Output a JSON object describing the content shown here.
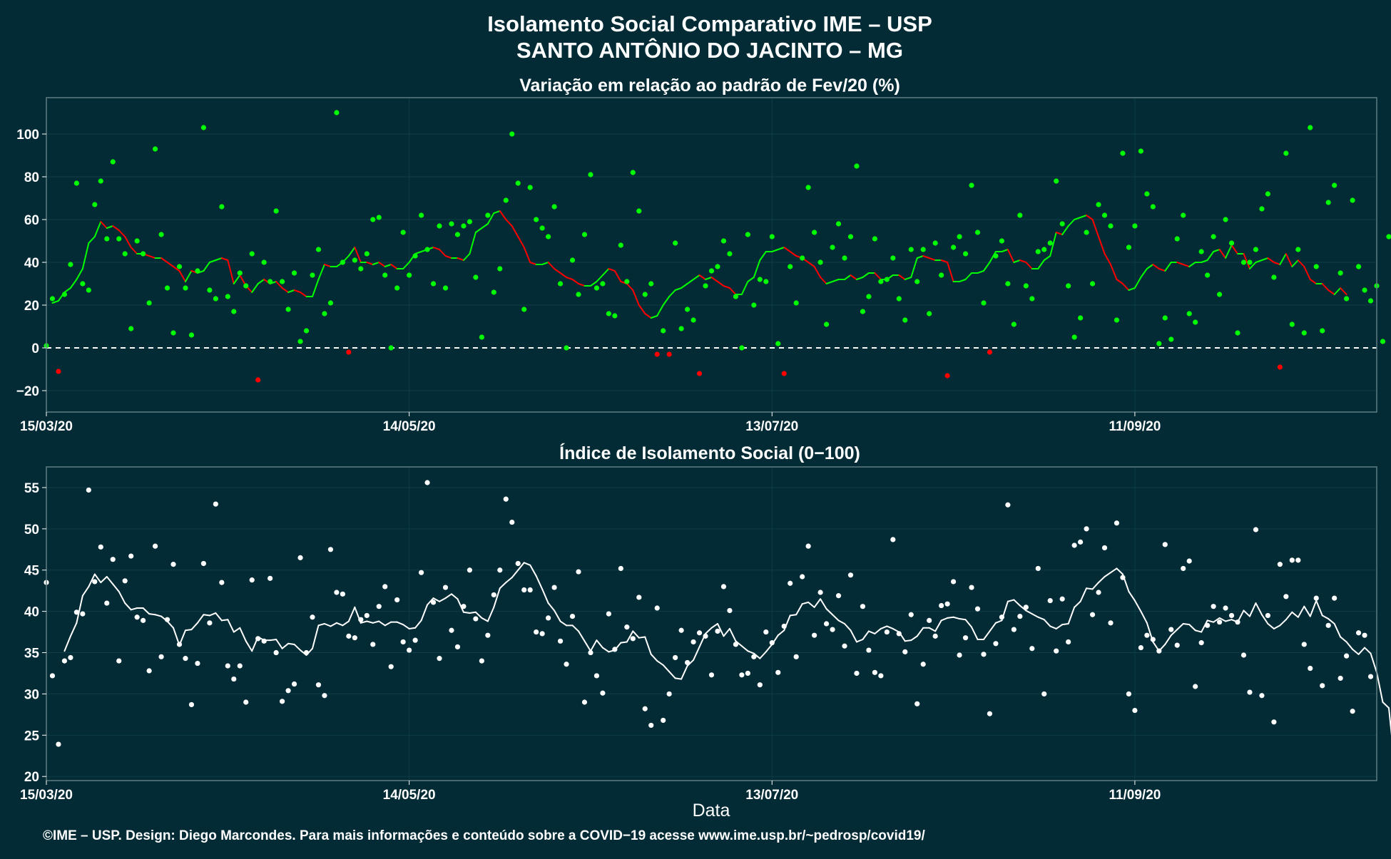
{
  "title": "Isolamento Social Comparativo IME – USP",
  "subtitle": "SANTO ANTÔNIO DO JACINTO – MG",
  "footer": "©IME – USP. Design: Diego Marcondes. Para mais informações e conteúdo sobre a COVID−19 acesse www.ime.usp.br/~pedrosp/covid19/",
  "colors": {
    "background": "#022b35",
    "positive": "#00ff00",
    "negative": "#ff0000",
    "index": "#ffffff",
    "panel_border": "#5f7d84",
    "grid": "#0d3d48"
  },
  "chart_data": [
    {
      "type": "scatter",
      "title": "Variação em relação ao padrão de Fev/20 (%)",
      "xlabel": "",
      "ylabel": "",
      "x_start": "15/03/20",
      "x_end": "21/10/20",
      "x_ticks": [
        "15/03/20",
        "14/05/20",
        "13/07/20",
        "11/09/20"
      ],
      "y_ticks": [
        -20,
        0,
        20,
        40,
        60,
        80,
        100
      ],
      "ylim": [
        -30,
        117
      ],
      "reference_line": 0,
      "grid": true,
      "series": [
        {
          "kind": "points",
          "values": [
            1,
            23,
            -11,
            25,
            39,
            77,
            30,
            27,
            67,
            78,
            51,
            87,
            51,
            44,
            9,
            50,
            44,
            21,
            93,
            53,
            28,
            7,
            38,
            28,
            6,
            36,
            103,
            27,
            23,
            66,
            24,
            17,
            35,
            29,
            44,
            -15,
            40,
            31,
            64,
            31,
            18,
            35,
            3,
            8,
            34,
            46,
            16,
            21,
            110,
            40,
            -2,
            41,
            37,
            44,
            60,
            61,
            34,
            0,
            28,
            54,
            34,
            43,
            62,
            46,
            30,
            57,
            28,
            58,
            53,
            57,
            59,
            33,
            5,
            62,
            26,
            37,
            69,
            100,
            77,
            18,
            75,
            60,
            56,
            52,
            66,
            30,
            0,
            41,
            25,
            53,
            81,
            28,
            30,
            16,
            15,
            48,
            31,
            82,
            64,
            25,
            30,
            -3,
            8,
            -3,
            49,
            9,
            18,
            13,
            -12,
            29,
            36,
            38,
            50,
            44,
            24,
            0,
            53,
            20,
            32,
            31,
            52,
            2,
            -12,
            38,
            21,
            42,
            75,
            54,
            40,
            11,
            47,
            58,
            42,
            52,
            85,
            17,
            24,
            51,
            31,
            32,
            42,
            23,
            13,
            46,
            31,
            46,
            16,
            49,
            34,
            -13,
            47,
            52,
            44,
            76,
            54,
            21,
            -2,
            43,
            50,
            30,
            11,
            62,
            29,
            23,
            45,
            46,
            49,
            78,
            58,
            29,
            5,
            14,
            54,
            30,
            67,
            62,
            57,
            13,
            91,
            47,
            57,
            92,
            72,
            66,
            2,
            14,
            4,
            51,
            62,
            16,
            12,
            45,
            34,
            52,
            25,
            60,
            49,
            7,
            40,
            40,
            46,
            65,
            72,
            33,
            -9,
            91,
            11,
            46,
            7,
            103,
            38,
            8,
            68,
            76,
            35,
            23,
            69,
            38,
            27,
            22,
            29,
            3,
            52,
            65,
            6
          ]
        },
        {
          "kind": "line",
          "start_index": 1,
          "values": [
            21,
            22,
            26,
            28,
            32,
            37,
            49,
            52,
            59,
            56,
            57,
            55,
            52,
            47,
            44,
            44,
            43,
            42,
            42,
            40,
            38,
            36,
            31,
            36,
            35,
            36,
            40,
            41,
            42,
            41,
            30,
            34,
            29,
            26,
            30,
            32,
            30,
            31,
            28,
            26,
            27,
            26,
            24,
            24,
            32,
            39,
            38,
            38,
            40,
            43,
            47,
            40,
            40,
            39,
            40,
            38,
            39,
            37,
            37,
            40,
            44,
            45,
            46,
            47,
            46,
            43,
            42,
            42,
            41,
            44,
            54,
            56,
            58,
            63,
            64,
            60,
            57,
            52,
            47,
            40,
            39,
            39,
            40,
            37,
            35,
            33,
            32,
            30,
            29,
            29,
            31,
            34,
            37,
            36,
            31,
            30,
            27,
            20,
            16,
            14,
            15,
            20,
            24,
            27,
            28,
            30,
            32,
            34,
            32,
            33,
            31,
            29,
            28,
            25,
            25,
            31,
            33,
            41,
            45,
            45,
            46,
            47,
            45,
            43,
            42,
            40,
            38,
            33,
            30,
            31,
            32,
            32,
            34,
            32,
            33,
            35,
            35,
            32,
            32,
            34,
            34,
            32,
            33,
            42,
            43,
            42,
            41,
            41,
            40,
            31,
            31,
            32,
            35,
            35,
            36,
            40,
            45,
            45,
            46,
            40,
            41,
            40,
            37,
            37,
            41,
            43,
            54,
            53,
            57,
            60,
            61,
            62,
            60,
            52,
            44,
            39,
            32,
            30,
            27,
            28,
            33,
            37,
            39,
            37,
            36,
            40,
            40,
            39,
            38,
            40,
            40,
            41,
            45,
            46,
            42,
            48,
            44,
            44,
            37,
            40,
            41,
            42,
            40,
            39,
            44,
            38,
            41,
            38,
            32,
            30,
            30,
            27,
            25,
            28,
            25
          ]
        }
      ]
    },
    {
      "type": "scatter",
      "title": "Índice de Isolamento Social (0−100)",
      "xlabel": "Data",
      "ylabel": "",
      "x_start": "15/03/20",
      "x_end": "21/10/20",
      "x_ticks": [
        "15/03/20",
        "14/05/20",
        "13/07/20",
        "11/09/20"
      ],
      "y_ticks": [
        20,
        25,
        30,
        35,
        40,
        45,
        50,
        55
      ],
      "ylim": [
        19.5,
        57.5
      ],
      "grid": true,
      "series": [
        {
          "kind": "points",
          "values": [
            43.5,
            32.2,
            23.9,
            34,
            34.4,
            39.9,
            39.7,
            54.7,
            43.6,
            47.8,
            41,
            46.3,
            34,
            43.7,
            46.7,
            39.3,
            38.9,
            32.8,
            47.9,
            34.5,
            39,
            45.7,
            36,
            34.3,
            28.7,
            33.7,
            45.8,
            38.6,
            53,
            43.5,
            33.4,
            31.8,
            33.4,
            29,
            43.8,
            36.7,
            36.4,
            44,
            35,
            29.1,
            30.4,
            31.2,
            46.5,
            35,
            39.3,
            31.1,
            29.8,
            47.5,
            42.3,
            42.1,
            37,
            36.8,
            39,
            39.5,
            36,
            40.6,
            43,
            33.3,
            41.4,
            36.3,
            35.3,
            36.5,
            44.7,
            55.6,
            41.1,
            34.3,
            42.9,
            37.7,
            35.7,
            40.6,
            45,
            39.1,
            34,
            37.1,
            42,
            45,
            53.6,
            50.8,
            45.8,
            42.6,
            42.6,
            37.5,
            37.3,
            39.2,
            42.9,
            36.4,
            33.6,
            39.4,
            44.8,
            29,
            35,
            32.2,
            30.1,
            39.7,
            35.4,
            45.2,
            38.1,
            36.7,
            41.7,
            28.2,
            26.2,
            40.4,
            26.8,
            30,
            34.4,
            37.7,
            33.8,
            36.3,
            37.4,
            37,
            32.3,
            37.6,
            43,
            40.1,
            36,
            32.3,
            32.5,
            34.5,
            31.1,
            37.5,
            36.2,
            32.6,
            38.2,
            43.4,
            34.5,
            44.2,
            47.9,
            37.1,
            42.3,
            38.5,
            37.8,
            41.9,
            35.8,
            44.4,
            32.5,
            40.6,
            35.3,
            32.6,
            32.2,
            37.5,
            48.7,
            37.3,
            35.1,
            39.6,
            28.8,
            33.6,
            38.9,
            37,
            40.7,
            40.9,
            43.6,
            34.7,
            36.8,
            42.9,
            40.3,
            34.8,
            27.6,
            36.1,
            39.3,
            52.9,
            37.8,
            39.4,
            40.5,
            35.5,
            45.2,
            30,
            41.3,
            35.2,
            41.5,
            36.3,
            48,
            48.4,
            50,
            39.6,
            42.3,
            47.7,
            38.6,
            50.7,
            44.1,
            30,
            28,
            35.6,
            37.1,
            36.6,
            35.2,
            48.1,
            37.8,
            35.9,
            45.2,
            46.1,
            30.9,
            36.2,
            38.3,
            40.6,
            38.7,
            40.4,
            39.5,
            38.7,
            34.7,
            30.2,
            49.9,
            29.8,
            39.5,
            26.6,
            45.7,
            41.8,
            46.2,
            46.2,
            36,
            33.1,
            41.6,
            31,
            38.3,
            41.6,
            31.9,
            34.6,
            27.9,
            37.4,
            37.1,
            32.1
          ]
        },
        {
          "kind": "line",
          "start_index": 3,
          "values": [
            35.2,
            37,
            38.6,
            41.9,
            43,
            44.5,
            43.5,
            44.2,
            43.3,
            42.4,
            41,
            40.2,
            40.4,
            40.4,
            39.7,
            39.6,
            39.4,
            38.8,
            38,
            35.9,
            37.7,
            37.8,
            38.6,
            39.6,
            39.5,
            39.8,
            38.9,
            39,
            37.5,
            38,
            36.4,
            35.2,
            36.9,
            36.5,
            36.5,
            36.6,
            35.5,
            36.1,
            36,
            35.3,
            34.7,
            35.5,
            38.3,
            38.5,
            38.2,
            38.6,
            38.3,
            38.8,
            40.5,
            38.6,
            38.8,
            38.6,
            38.8,
            38.3,
            38.7,
            38.7,
            38.4,
            37.9,
            38,
            38.9,
            40.8,
            41.6,
            41.2,
            41.6,
            42.1,
            41.5,
            39.9,
            39.8,
            39.9,
            39.2,
            38.8,
            40.5,
            42.8,
            43.5,
            44.1,
            45,
            45.9,
            45.6,
            44.3,
            42.7,
            41,
            40.1,
            38.8,
            38.3,
            38.3,
            37.6,
            36.4,
            35.2,
            36.5,
            35.6,
            35.1,
            35.3,
            36.2,
            36.3,
            37.6,
            36.8,
            36.9,
            34.8,
            34,
            33.5,
            32.7,
            31.9,
            31.8,
            33.4,
            34.1,
            35.7,
            37.3,
            38,
            38.5,
            37,
            37.9,
            36.4,
            35.8,
            35.2,
            34.9,
            34.3,
            35.1,
            36,
            37.1,
            37.7,
            39.5,
            39.6,
            40.9,
            41.1,
            40.5,
            41.5,
            40.3,
            39.6,
            38.9,
            38.5,
            37.7,
            36.3,
            36.6,
            37.6,
            37.3,
            37.9,
            38.2,
            37.9,
            37.5,
            36.4,
            36.5,
            37,
            38,
            38,
            37.6,
            38.9,
            39.2,
            39.3,
            39.1,
            39,
            38.1,
            36.6,
            36.6,
            37.6,
            38.6,
            38.9,
            41.2,
            41.4,
            40.7,
            40.1,
            39.7,
            39.3,
            39,
            38.2,
            37.9,
            38.4,
            38.5,
            40.5,
            41.2,
            42.8,
            42.7,
            43.5,
            44.2,
            44.7,
            45.2,
            44.5,
            42.4,
            41.3,
            40,
            38.6,
            36.3,
            35.2,
            36,
            37.1,
            37.8,
            38.5,
            38.4,
            37.7,
            37.5,
            38.9,
            38.7,
            39.2,
            38.8,
            39,
            38.7,
            40.1,
            39.4,
            41,
            39.6,
            38.5,
            37.9,
            38.3,
            39,
            39.9,
            39.3,
            40.6,
            39.4,
            41.3,
            39.5,
            39.1,
            38.5,
            36.9,
            36.3,
            35.4,
            34.8,
            35.6,
            34.9,
            32.6,
            29,
            28.3,
            21.3
          ]
        }
      ]
    }
  ]
}
